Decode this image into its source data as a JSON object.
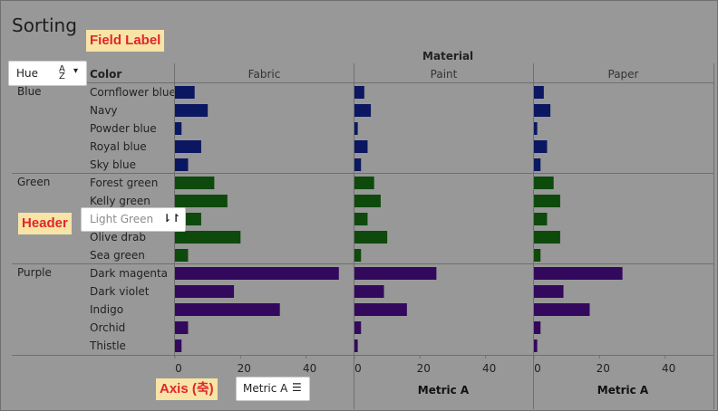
{
  "title": "Sorting",
  "callouts": {
    "field_label": "Field Label",
    "header": "Header",
    "axis": "Axis (축)"
  },
  "headers": {
    "hue": "Hue",
    "color": "Color",
    "material": "Material"
  },
  "chips": {
    "hue": "Hue",
    "header_item": "Light Green",
    "axis_field": "Metric A"
  },
  "axis_title": "Metric A",
  "colors": {
    "Blue": "#0b1760",
    "Green": "#0d4a0c",
    "Purple": "#33095e",
    "background": "#989898",
    "line": "#6f6f6f"
  },
  "chart_data": {
    "type": "bar",
    "orientation": "horizontal",
    "columns_title": "Material",
    "columns": [
      "Fabric",
      "Paint",
      "Paper"
    ],
    "groups": [
      {
        "name": "Blue",
        "items": [
          "Cornflower blue",
          "Navy",
          "Powder blue",
          "Royal blue",
          "Sky blue"
        ]
      },
      {
        "name": "Green",
        "items": [
          "Forest green",
          "Kelly green",
          "Light Green",
          "Olive drab",
          "Sea green"
        ]
      },
      {
        "name": "Purple",
        "items": [
          "Dark magenta",
          "Dark violet",
          "Indigo",
          "Orchid",
          "Thistle"
        ]
      }
    ],
    "values": {
      "Fabric": [
        6,
        10,
        2,
        8,
        4,
        12,
        16,
        8,
        20,
        4,
        50,
        18,
        32,
        4,
        2
      ],
      "Paint": [
        3,
        5,
        1,
        4,
        2,
        6,
        8,
        4,
        10,
        2,
        25,
        9,
        16,
        2,
        1
      ],
      "Paper": [
        3,
        5,
        1,
        4,
        2,
        6,
        8,
        4,
        8,
        2,
        27,
        9,
        17,
        2,
        1
      ]
    },
    "xlim": [
      0,
      52
    ],
    "xticks": [
      0,
      20,
      40
    ],
    "xlabel": "Metric A",
    "ylabel": "Color",
    "grid": false
  }
}
